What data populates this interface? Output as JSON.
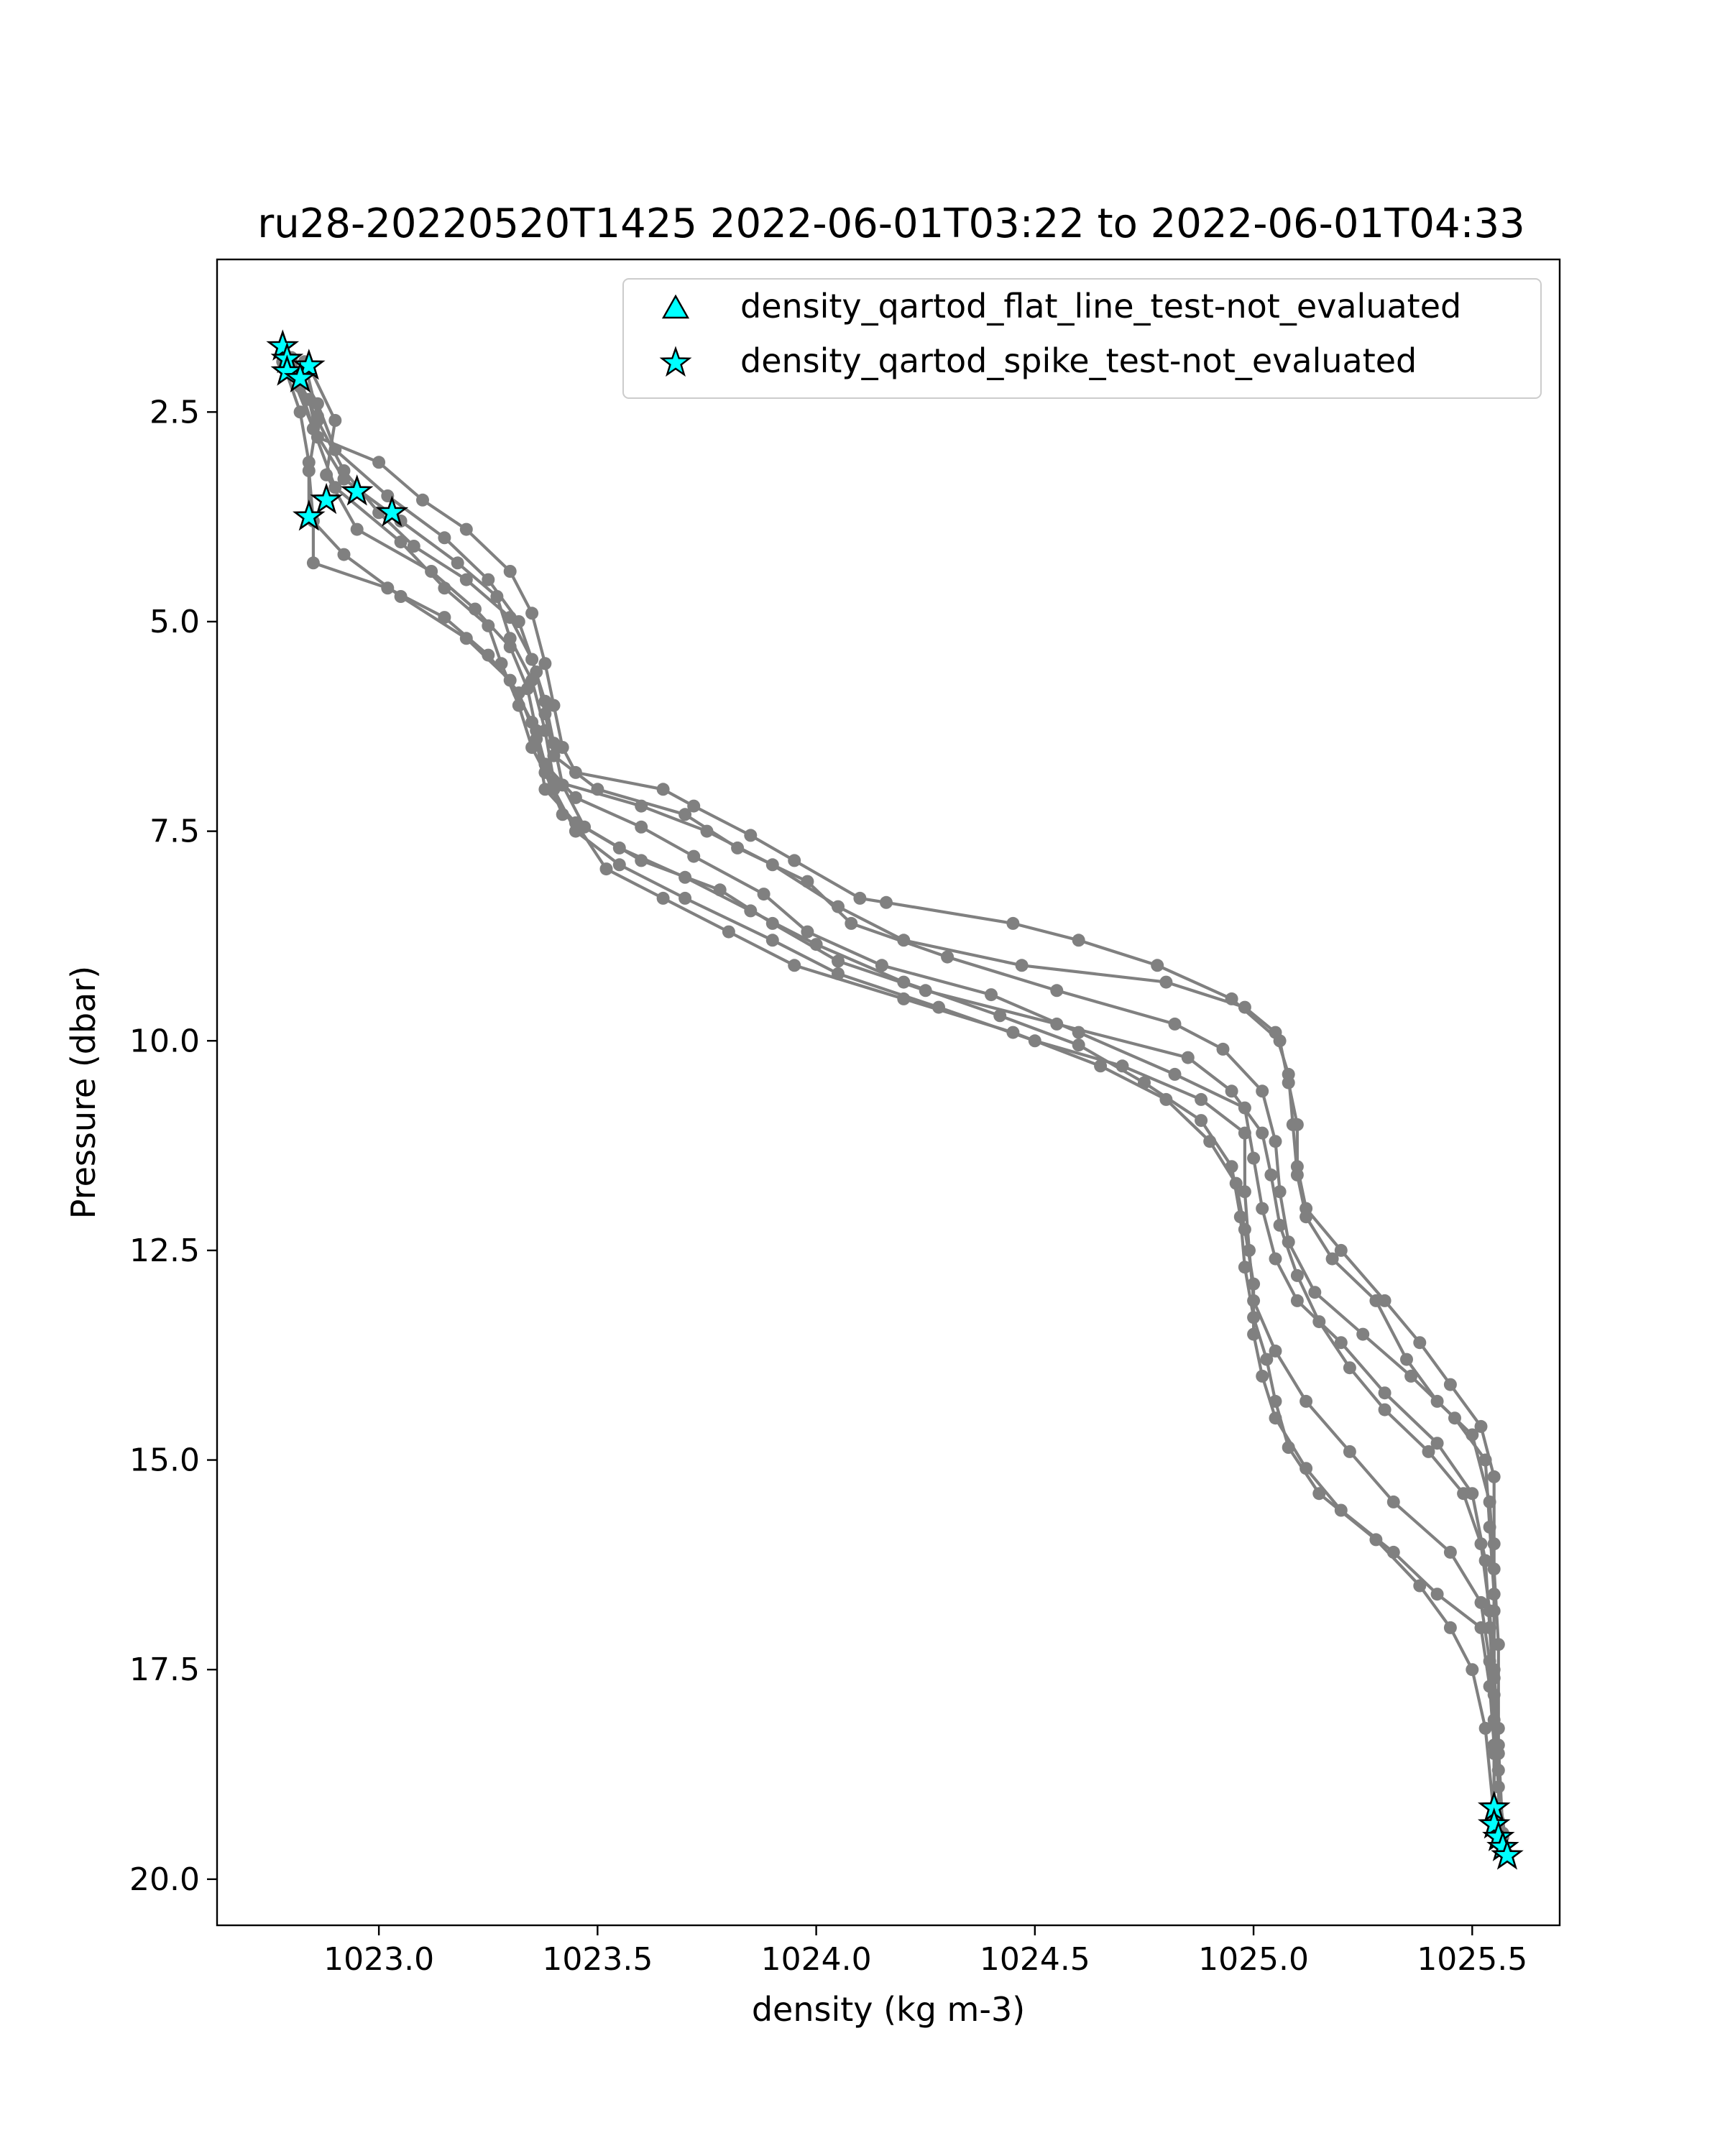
{
  "chart_data": {
    "type": "line",
    "title": "ru28-20220520T1425 2022-06-01T03:22 to 2022-06-01T04:33",
    "xlabel": "density (kg m-3)",
    "ylabel": "Pressure (dbar)",
    "xlim": [
      1022.63,
      1025.7
    ],
    "ylim": [
      20.55,
      0.68
    ],
    "y_inverted": true,
    "xticks": [
      1023.0,
      1023.5,
      1024.0,
      1024.5,
      1025.0,
      1025.5
    ],
    "xtick_labels": [
      "1023.0",
      "1023.5",
      "1024.0",
      "1024.5",
      "1025.0",
      "1025.5"
    ],
    "yticks": [
      2.5,
      5.0,
      7.5,
      10.0,
      12.5,
      15.0,
      17.5,
      20.0
    ],
    "ytick_labels": [
      "2.5",
      "5.0",
      "7.5",
      "10.0",
      "12.5",
      "15.0",
      "17.5",
      "20.0"
    ],
    "grid": false,
    "legend_position": "top-right",
    "legend": [
      {
        "label": "density_qartod_flat_line_test-not_evaluated",
        "marker": "triangle",
        "color": "#00ffff"
      },
      {
        "label": "density_qartod_spike_test-not_evaluated",
        "marker": "star",
        "color": "#00ffff"
      }
    ],
    "profile_color": "#808080",
    "flag_color": "#00ffff",
    "series": [
      {
        "points": [
          [
            1022.79,
            1.9
          ],
          [
            1022.84,
            2.35
          ],
          [
            1022.86,
            2.8
          ],
          [
            1023.0,
            3.1
          ],
          [
            1023.1,
            3.55
          ],
          [
            1023.2,
            3.9
          ],
          [
            1023.3,
            4.4
          ],
          [
            1023.35,
            4.9
          ],
          [
            1023.38,
            5.5
          ],
          [
            1023.4,
            6.0
          ],
          [
            1023.42,
            6.5
          ],
          [
            1023.45,
            6.8
          ],
          [
            1023.65,
            7.0
          ],
          [
            1023.72,
            7.2
          ],
          [
            1023.85,
            7.55
          ],
          [
            1023.95,
            7.85
          ],
          [
            1024.1,
            8.3
          ],
          [
            1024.16,
            8.35
          ],
          [
            1024.45,
            8.6
          ],
          [
            1024.6,
            8.8
          ],
          [
            1024.78,
            9.1
          ],
          [
            1024.95,
            9.5
          ],
          [
            1025.06,
            10.0
          ],
          [
            1025.08,
            10.5
          ],
          [
            1025.1,
            11.0
          ],
          [
            1025.1,
            11.5
          ],
          [
            1025.12,
            12.0
          ],
          [
            1025.2,
            12.5
          ],
          [
            1025.3,
            13.1
          ],
          [
            1025.38,
            13.6
          ],
          [
            1025.45,
            14.1
          ],
          [
            1025.52,
            14.6
          ],
          [
            1025.55,
            15.2
          ],
          [
            1025.55,
            16.0
          ],
          [
            1025.55,
            16.8
          ],
          [
            1025.55,
            17.6
          ],
          [
            1025.55,
            18.5
          ],
          [
            1025.55,
            19.2
          ]
        ]
      },
      {
        "points": [
          [
            1022.78,
            1.75
          ],
          [
            1022.82,
            2.2
          ],
          [
            1022.85,
            2.7
          ],
          [
            1022.92,
            3.3
          ],
          [
            1023.05,
            3.8
          ],
          [
            1023.18,
            4.3
          ],
          [
            1023.27,
            4.7
          ],
          [
            1023.3,
            5.2
          ],
          [
            1023.35,
            5.7
          ],
          [
            1023.38,
            6.3
          ],
          [
            1023.4,
            6.9
          ],
          [
            1023.6,
            7.2
          ],
          [
            1023.75,
            7.5
          ],
          [
            1023.9,
            7.9
          ],
          [
            1024.05,
            8.4
          ],
          [
            1024.2,
            8.8
          ],
          [
            1024.47,
            9.1
          ],
          [
            1024.8,
            9.3
          ],
          [
            1024.98,
            9.6
          ],
          [
            1025.05,
            9.9
          ],
          [
            1025.08,
            10.4
          ],
          [
            1025.09,
            11.0
          ],
          [
            1025.1,
            11.6
          ],
          [
            1025.12,
            12.1
          ],
          [
            1025.18,
            12.6
          ],
          [
            1025.28,
            13.1
          ],
          [
            1025.35,
            13.8
          ],
          [
            1025.42,
            14.3
          ],
          [
            1025.5,
            14.7
          ],
          [
            1025.54,
            15.5
          ],
          [
            1025.55,
            16.3
          ],
          [
            1025.56,
            17.2
          ],
          [
            1025.56,
            18.2
          ],
          [
            1025.56,
            19.3
          ]
        ]
      },
      {
        "points": [
          [
            1022.8,
            1.85
          ],
          [
            1022.86,
            2.4
          ],
          [
            1022.9,
            2.95
          ],
          [
            1023.02,
            3.5
          ],
          [
            1023.15,
            4.0
          ],
          [
            1023.25,
            4.5
          ],
          [
            1023.32,
            5.0
          ],
          [
            1023.36,
            5.6
          ],
          [
            1023.38,
            6.1
          ],
          [
            1023.4,
            6.6
          ],
          [
            1023.5,
            7.0
          ],
          [
            1023.7,
            7.3
          ],
          [
            1023.82,
            7.7
          ],
          [
            1023.98,
            8.1
          ],
          [
            1024.08,
            8.6
          ],
          [
            1024.3,
            9.0
          ],
          [
            1024.55,
            9.4
          ],
          [
            1024.82,
            9.8
          ],
          [
            1024.93,
            10.1
          ],
          [
            1025.02,
            10.6
          ],
          [
            1025.05,
            11.2
          ],
          [
            1025.06,
            11.8
          ],
          [
            1025.08,
            12.4
          ],
          [
            1025.14,
            13.0
          ],
          [
            1025.25,
            13.5
          ],
          [
            1025.36,
            14.0
          ],
          [
            1025.46,
            14.5
          ],
          [
            1025.53,
            15.0
          ],
          [
            1025.54,
            15.8
          ],
          [
            1025.55,
            16.6
          ],
          [
            1025.55,
            17.5
          ],
          [
            1025.56,
            18.4
          ],
          [
            1025.57,
            19.45
          ]
        ]
      },
      {
        "points": [
          [
            1022.84,
            1.95
          ],
          [
            1022.9,
            2.6
          ],
          [
            1022.88,
            3.25
          ],
          [
            1022.95,
            3.9
          ],
          [
            1023.12,
            4.4
          ],
          [
            1023.22,
            4.85
          ],
          [
            1023.3,
            5.3
          ],
          [
            1023.34,
            5.8
          ],
          [
            1023.36,
            6.3
          ],
          [
            1023.38,
            6.7
          ],
          [
            1023.45,
            7.1
          ],
          [
            1023.6,
            7.45
          ],
          [
            1023.72,
            7.8
          ],
          [
            1023.88,
            8.25
          ],
          [
            1023.98,
            8.7
          ],
          [
            1024.15,
            9.1
          ],
          [
            1024.4,
            9.45
          ],
          [
            1024.6,
            9.9
          ],
          [
            1024.82,
            10.4
          ],
          [
            1024.98,
            10.8
          ],
          [
            1025.0,
            11.4
          ],
          [
            1025.02,
            12.0
          ],
          [
            1025.05,
            12.6
          ],
          [
            1025.1,
            13.1
          ],
          [
            1025.2,
            13.6
          ],
          [
            1025.3,
            14.2
          ],
          [
            1025.42,
            14.8
          ],
          [
            1025.5,
            15.4
          ],
          [
            1025.53,
            16.2
          ],
          [
            1025.54,
            17.0
          ],
          [
            1025.55,
            17.8
          ],
          [
            1025.56,
            18.7
          ],
          [
            1025.57,
            19.6
          ]
        ]
      },
      {
        "points": [
          [
            1022.8,
            2.05
          ],
          [
            1022.85,
            2.7
          ],
          [
            1022.9,
            3.4
          ],
          [
            1023.05,
            4.05
          ],
          [
            1023.15,
            4.6
          ],
          [
            1023.25,
            5.05
          ],
          [
            1023.28,
            5.5
          ],
          [
            1023.32,
            6.0
          ],
          [
            1023.35,
            6.5
          ],
          [
            1023.4,
            7.0
          ],
          [
            1023.45,
            7.5
          ],
          [
            1023.55,
            7.9
          ],
          [
            1023.7,
            8.3
          ],
          [
            1023.9,
            8.8
          ],
          [
            1024.05,
            9.2
          ],
          [
            1024.28,
            9.6
          ],
          [
            1024.5,
            10.0
          ],
          [
            1024.7,
            10.3
          ],
          [
            1024.88,
            10.7
          ],
          [
            1024.98,
            11.1
          ],
          [
            1024.98,
            11.8
          ],
          [
            1024.99,
            12.5
          ],
          [
            1025.0,
            13.1
          ],
          [
            1025.05,
            13.7
          ],
          [
            1025.12,
            14.3
          ],
          [
            1025.22,
            14.9
          ],
          [
            1025.32,
            15.5
          ],
          [
            1025.45,
            16.1
          ],
          [
            1025.52,
            16.7
          ],
          [
            1025.54,
            17.4
          ],
          [
            1025.55,
            18.1
          ],
          [
            1025.56,
            18.9
          ],
          [
            1025.58,
            19.7
          ]
        ]
      },
      {
        "points": [
          [
            1022.78,
            1.9
          ],
          [
            1022.82,
            2.5
          ],
          [
            1022.84,
            3.1
          ],
          [
            1022.84,
            3.75
          ],
          [
            1022.92,
            4.2
          ],
          [
            1023.05,
            4.7
          ],
          [
            1023.2,
            5.2
          ],
          [
            1023.3,
            5.7
          ],
          [
            1023.35,
            6.2
          ],
          [
            1023.38,
            6.8
          ],
          [
            1023.42,
            7.3
          ],
          [
            1023.55,
            7.7
          ],
          [
            1023.7,
            8.05
          ],
          [
            1023.85,
            8.45
          ],
          [
            1024.0,
            8.85
          ],
          [
            1024.2,
            9.3
          ],
          [
            1024.42,
            9.7
          ],
          [
            1024.6,
            10.05
          ],
          [
            1024.75,
            10.5
          ],
          [
            1024.88,
            10.95
          ],
          [
            1024.95,
            11.5
          ],
          [
            1024.97,
            12.1
          ],
          [
            1024.98,
            12.7
          ],
          [
            1025.0,
            13.3
          ],
          [
            1025.03,
            13.8
          ],
          [
            1025.05,
            14.3
          ],
          [
            1025.08,
            14.85
          ],
          [
            1025.15,
            15.4
          ],
          [
            1025.28,
            15.95
          ],
          [
            1025.38,
            16.5
          ],
          [
            1025.45,
            17.0
          ],
          [
            1025.5,
            17.5
          ],
          [
            1025.53,
            18.2
          ],
          [
            1025.55,
            19.25
          ]
        ]
      },
      {
        "points": [
          [
            1022.83,
            1.9
          ],
          [
            1022.86,
            2.55
          ],
          [
            1022.84,
            3.2
          ],
          [
            1022.85,
            3.8
          ],
          [
            1022.85,
            4.3
          ],
          [
            1023.02,
            4.6
          ],
          [
            1023.15,
            4.95
          ],
          [
            1023.25,
            5.4
          ],
          [
            1023.32,
            5.85
          ],
          [
            1023.36,
            6.4
          ],
          [
            1023.38,
            7.0
          ],
          [
            1023.45,
            7.4
          ],
          [
            1023.52,
            7.95
          ],
          [
            1023.65,
            8.3
          ],
          [
            1023.8,
            8.7
          ],
          [
            1023.95,
            9.1
          ],
          [
            1024.2,
            9.5
          ],
          [
            1024.45,
            9.9
          ],
          [
            1024.65,
            10.3
          ],
          [
            1024.8,
            10.7
          ],
          [
            1024.9,
            11.2
          ],
          [
            1024.96,
            11.7
          ],
          [
            1024.98,
            12.25
          ],
          [
            1025.0,
            12.9
          ],
          [
            1025.0,
            13.5
          ],
          [
            1025.02,
            14.0
          ],
          [
            1025.05,
            14.5
          ],
          [
            1025.12,
            15.1
          ],
          [
            1025.2,
            15.6
          ],
          [
            1025.32,
            16.1
          ],
          [
            1025.42,
            16.6
          ],
          [
            1025.52,
            17.0
          ],
          [
            1025.54,
            17.7
          ],
          [
            1025.55,
            18.4
          ],
          [
            1025.55,
            19.3
          ]
        ]
      },
      {
        "points": [
          [
            1022.8,
            1.95
          ],
          [
            1022.86,
            2.6
          ],
          [
            1022.92,
            3.2
          ],
          [
            1023.0,
            3.7
          ],
          [
            1023.08,
            4.1
          ],
          [
            1023.2,
            4.5
          ],
          [
            1023.3,
            4.95
          ],
          [
            1023.35,
            5.45
          ],
          [
            1023.38,
            5.95
          ],
          [
            1023.4,
            6.45
          ],
          [
            1023.42,
            6.95
          ],
          [
            1023.47,
            7.45
          ],
          [
            1023.6,
            7.85
          ],
          [
            1023.78,
            8.2
          ],
          [
            1023.9,
            8.6
          ],
          [
            1024.05,
            9.05
          ],
          [
            1024.25,
            9.4
          ],
          [
            1024.55,
            9.8
          ],
          [
            1024.85,
            10.2
          ],
          [
            1024.95,
            10.6
          ],
          [
            1025.02,
            11.1
          ],
          [
            1025.04,
            11.6
          ],
          [
            1025.06,
            12.2
          ],
          [
            1025.1,
            12.8
          ],
          [
            1025.15,
            13.35
          ],
          [
            1025.22,
            13.9
          ],
          [
            1025.3,
            14.4
          ],
          [
            1025.4,
            14.9
          ],
          [
            1025.48,
            15.4
          ],
          [
            1025.52,
            16.0
          ],
          [
            1025.54,
            16.8
          ],
          [
            1025.55,
            17.6
          ],
          [
            1025.56,
            18.5
          ],
          [
            1025.57,
            19.5
          ]
        ]
      }
    ],
    "flagged_points": [
      [
        1022.78,
        1.72
      ],
      [
        1022.79,
        1.87
      ],
      [
        1022.79,
        2.02
      ],
      [
        1022.84,
        1.95
      ],
      [
        1022.82,
        2.1
      ],
      [
        1022.95,
        3.45
      ],
      [
        1022.88,
        3.55
      ],
      [
        1023.03,
        3.7
      ],
      [
        1022.84,
        3.75
      ],
      [
        1025.55,
        19.15
      ],
      [
        1025.55,
        19.35
      ],
      [
        1025.56,
        19.5
      ],
      [
        1025.57,
        19.62
      ],
      [
        1025.58,
        19.72
      ]
    ]
  }
}
